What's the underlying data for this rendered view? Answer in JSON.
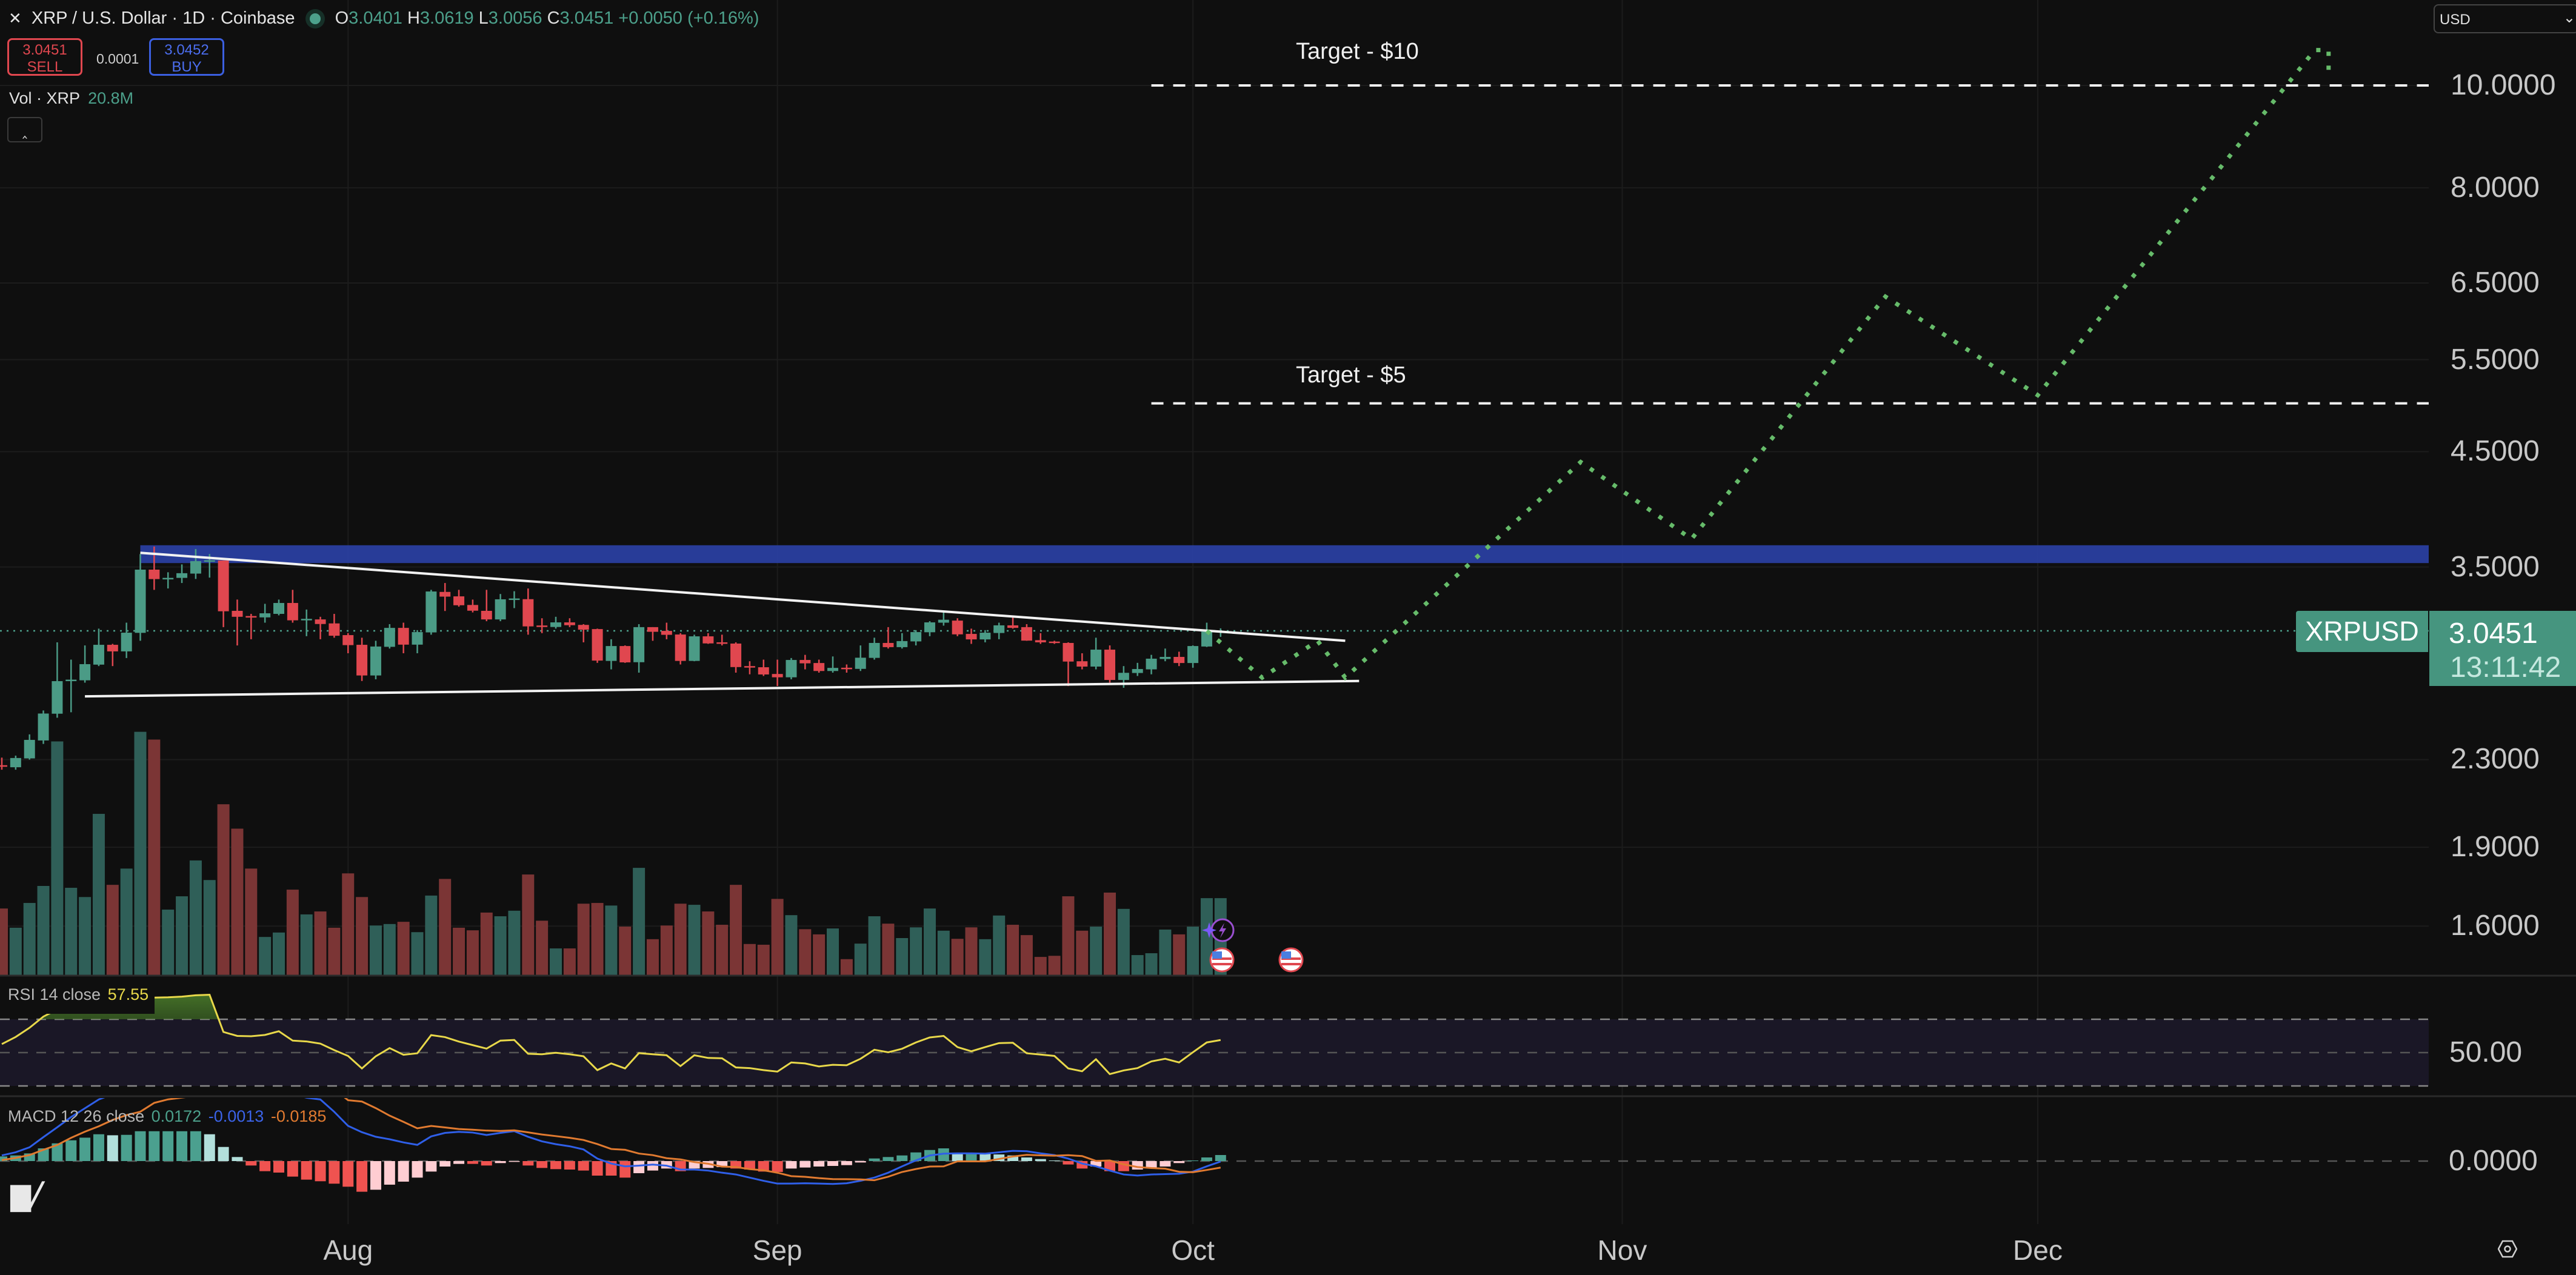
{
  "header": {
    "close_icon": "x-icon",
    "title": "XRP / U.S. Dollar · 1D · Coinbase",
    "status_dot_color": "#4ca08b",
    "ohlc": {
      "o_label": "O",
      "o": "3.0401",
      "h_label": "H",
      "h": "3.0619",
      "l_label": "L",
      "l": "3.0056",
      "c_label": "C",
      "c": "3.0451",
      "change": "+0.0050 (+0.16%)"
    },
    "sell": {
      "price": "3.0451",
      "label": "SELL"
    },
    "spread": "0.0001",
    "buy": {
      "price": "3.0452",
      "label": "BUY"
    },
    "volume": {
      "label": "Vol · XRP",
      "value": "20.8M"
    },
    "collapse_icon": "chevron-up-icon"
  },
  "currency_select": {
    "value": "USD"
  },
  "symbol_label": "XRPUSD",
  "last_price": "3.0451",
  "countdown": "13:11:42",
  "rsi": {
    "label": "RSI 14 close",
    "value": "57.55",
    "axis_label": "50.00",
    "levels": [
      70,
      50,
      30
    ]
  },
  "macd": {
    "label": "MACD 12 26 close",
    "hist": "0.0172",
    "macd": "-0.0013",
    "signal": "-0.0185",
    "axis_label": "0.0000"
  },
  "annotations": {
    "target_10": "Target - $10",
    "target_5": "Target - $5"
  },
  "colors": {
    "up": "#4b9b86",
    "down": "#e0474f",
    "vol_up": "#2f5f58",
    "vol_down": "#7b3535",
    "zone": "#2a3fa0",
    "projection": "#66bb6a",
    "rsi": "#e8d84a",
    "macd_line": "#2f5fe8",
    "signal_line": "#e07a30"
  },
  "chart_data": {
    "type": "candlestick",
    "scale": "log",
    "price_axis": {
      "ticks": [
        "10.0000",
        "8.0000",
        "6.5000",
        "5.5000",
        "4.5000",
        "3.5000",
        "2.3000",
        "1.9000",
        "1.6000"
      ]
    },
    "time_axis": {
      "ticks": [
        "Aug",
        "Sep",
        "Oct",
        "Nov",
        "Dec"
      ]
    },
    "candles_fields": [
      "date",
      "open",
      "high",
      "low",
      "close",
      "volume_M"
    ],
    "candles": [
      [
        "Jul 7",
        2.272,
        2.31,
        2.25,
        2.267,
        18.0
      ],
      [
        "Jul 8",
        2.262,
        2.32,
        2.25,
        2.308,
        12.8
      ],
      [
        "Jul 9",
        2.306,
        2.43,
        2.3,
        2.401,
        19.5
      ],
      [
        "Jul 10",
        2.398,
        2.56,
        2.38,
        2.543,
        24.1
      ],
      [
        "Jul 11",
        2.542,
        2.97,
        2.52,
        2.729,
        63.2
      ],
      [
        "Jul 12",
        2.734,
        2.86,
        2.55,
        2.738,
        23.6
      ],
      [
        "Jul 13",
        2.734,
        2.95,
        2.72,
        2.832,
        21.1
      ],
      [
        "Jul 14",
        2.829,
        3.06,
        2.82,
        2.954,
        43.6
      ],
      [
        "Jul 15",
        2.954,
        2.96,
        2.82,
        2.912,
        24.4
      ],
      [
        "Jul 16",
        2.912,
        3.1,
        2.87,
        3.033,
        28.8
      ],
      [
        "Jul 17",
        3.032,
        3.6,
        2.98,
        3.48,
        65.8
      ],
      [
        "Jul 18",
        3.48,
        3.66,
        3.33,
        3.409,
        63.7
      ],
      [
        "Jul 19",
        3.412,
        3.46,
        3.34,
        3.418,
        17.7
      ],
      [
        "Jul 20",
        3.418,
        3.52,
        3.38,
        3.453,
        21.3
      ],
      [
        "Jul 21",
        3.45,
        3.64,
        3.41,
        3.545,
        31.0
      ],
      [
        "Jul 22",
        3.548,
        3.6,
        3.42,
        3.552,
        25.7
      ],
      [
        "Jul 23",
        3.55,
        3.55,
        3.07,
        3.178,
        46.2
      ],
      [
        "Jul 24",
        3.181,
        3.26,
        2.95,
        3.14,
        39.6
      ],
      [
        "Jul 25",
        3.145,
        3.16,
        2.99,
        3.142,
        28.8
      ],
      [
        "Jul 26",
        3.136,
        3.23,
        3.1,
        3.164,
        10.3
      ],
      [
        "Jul 27",
        3.16,
        3.26,
        3.15,
        3.236,
        11.5
      ],
      [
        "Jul 28",
        3.236,
        3.33,
        3.1,
        3.116,
        23.1
      ],
      [
        "Jul 29",
        3.122,
        3.19,
        3.01,
        3.126,
        16.4
      ],
      [
        "Jul 30",
        3.122,
        3.14,
        2.99,
        3.091,
        17.2
      ],
      [
        "Jul 31",
        3.095,
        3.16,
        3.0,
        3.013,
        12.8
      ],
      [
        "Aug 1",
        3.017,
        3.03,
        2.9,
        2.952,
        27.5
      ],
      [
        "Aug 2",
        2.954,
        3.0,
        2.73,
        2.763,
        21.1
      ],
      [
        "Aug 3",
        2.763,
        2.98,
        2.74,
        2.943,
        13.4
      ],
      [
        "Aug 4",
        2.941,
        3.09,
        2.93,
        3.065,
        13.8
      ],
      [
        "Aug 5",
        3.065,
        3.1,
        2.9,
        2.955,
        14.4
      ],
      [
        "Aug 6",
        2.955,
        3.05,
        2.9,
        3.037,
        11.6
      ],
      [
        "Aug 7",
        3.035,
        3.33,
        3.02,
        3.318,
        21.5
      ],
      [
        "Aug 8",
        3.315,
        3.38,
        3.18,
        3.281,
        26.0
      ],
      [
        "Aug 9",
        3.283,
        3.33,
        3.21,
        3.22,
        12.8
      ],
      [
        "Aug 10",
        3.222,
        3.26,
        3.17,
        3.182,
        12.1
      ],
      [
        "Aug 11",
        3.181,
        3.33,
        3.11,
        3.122,
        16.9
      ],
      [
        "Aug 12",
        3.122,
        3.3,
        3.11,
        3.262,
        15.9
      ],
      [
        "Aug 13",
        3.262,
        3.32,
        3.2,
        3.268,
        17.4
      ],
      [
        "Aug 14",
        3.263,
        3.34,
        3.02,
        3.075,
        27.2
      ],
      [
        "Aug 15",
        3.081,
        3.13,
        3.03,
        3.079,
        14.7
      ],
      [
        "Aug 16",
        3.071,
        3.14,
        3.06,
        3.102,
        7.2
      ],
      [
        "Aug 17",
        3.102,
        3.13,
        3.07,
        3.083,
        7.2
      ],
      [
        "Aug 18",
        3.085,
        3.09,
        2.97,
        3.053,
        19.3
      ],
      [
        "Aug 19",
        3.057,
        3.06,
        2.84,
        2.854,
        19.5
      ],
      [
        "Aug 20",
        2.852,
        2.99,
        2.8,
        2.946,
        18.8
      ],
      [
        "Aug 21",
        2.946,
        2.95,
        2.84,
        2.843,
        13.1
      ],
      [
        "Aug 22",
        2.844,
        3.09,
        2.78,
        3.07,
        29.0
      ],
      [
        "Aug 23",
        3.07,
        3.07,
        2.98,
        3.039,
        9.7
      ],
      [
        "Aug 24",
        3.045,
        3.1,
        2.99,
        3.019,
        13.4
      ],
      [
        "Aug 25",
        3.021,
        3.03,
        2.83,
        2.852,
        19.3
      ],
      [
        "Aug 26",
        2.852,
        3.02,
        2.85,
        3.009,
        19.0
      ],
      [
        "Aug 27",
        3.009,
        3.03,
        2.96,
        2.963,
        17.2
      ],
      [
        "Aug 28",
        2.97,
        3.02,
        2.95,
        2.966,
        13.6
      ],
      [
        "Aug 29",
        2.962,
        2.97,
        2.78,
        2.814,
        24.4
      ],
      [
        "Aug 30",
        2.82,
        2.85,
        2.77,
        2.816,
        8.4
      ],
      [
        "Aug 31",
        2.813,
        2.86,
        2.76,
        2.769,
        8.2
      ],
      [
        "Sep 1",
        2.772,
        2.86,
        2.7,
        2.752,
        20.6
      ],
      [
        "Sep 2",
        2.752,
        2.87,
        2.74,
        2.858,
        16.2
      ],
      [
        "Sep 3",
        2.858,
        2.89,
        2.8,
        2.837,
        12.4
      ],
      [
        "Sep 4",
        2.839,
        2.86,
        2.78,
        2.79,
        11.0
      ],
      [
        "Sep 5",
        2.79,
        2.88,
        2.78,
        2.809,
        12.6
      ],
      [
        "Sep 6",
        2.81,
        2.83,
        2.78,
        2.806,
        4.3
      ],
      [
        "Sep 7",
        2.803,
        2.95,
        2.79,
        2.872,
        8.5
      ],
      [
        "Sep 8",
        2.871,
        3.0,
        2.86,
        2.966,
        15.9
      ],
      [
        "Sep 9",
        2.966,
        3.07,
        2.93,
        2.939,
        13.9
      ],
      [
        "Sep 10",
        2.939,
        3.03,
        2.93,
        2.978,
        10.0
      ],
      [
        "Sep 11",
        2.976,
        3.05,
        2.95,
        3.037,
        12.9
      ],
      [
        "Sep 12",
        3.036,
        3.11,
        3.01,
        3.102,
        18.0
      ],
      [
        "Sep 13",
        3.1,
        3.18,
        3.08,
        3.12,
        12.0
      ],
      [
        "Sep 14",
        3.114,
        3.13,
        3.01,
        3.022,
        9.8
      ],
      [
        "Sep 15",
        3.025,
        3.06,
        2.96,
        2.989,
        12.9
      ],
      [
        "Sep 16",
        2.989,
        3.05,
        2.97,
        3.033,
        9.7
      ],
      [
        "Sep 17",
        3.031,
        3.1,
        2.99,
        3.082,
        16.1
      ],
      [
        "Sep 18",
        3.082,
        3.14,
        3.06,
        3.065,
        13.6
      ],
      [
        "Sep 19",
        3.07,
        3.09,
        2.98,
        2.981,
        10.8
      ],
      [
        "Sep 20",
        2.984,
        3.03,
        2.96,
        2.97,
        4.9
      ],
      [
        "Sep 21",
        2.975,
        2.98,
        2.96,
        2.971,
        5.2
      ],
      [
        "Sep 22",
        2.966,
        2.97,
        2.7,
        2.848,
        21.3
      ],
      [
        "Sep 23",
        2.85,
        2.9,
        2.8,
        2.817,
        12.0
      ],
      [
        "Sep 24",
        2.817,
        3.0,
        2.8,
        2.923,
        13.1
      ],
      [
        "Sep 25",
        2.923,
        2.95,
        2.72,
        2.736,
        22.3
      ],
      [
        "Sep 26",
        2.736,
        2.82,
        2.69,
        2.779,
        17.9
      ],
      [
        "Sep 27",
        2.778,
        2.84,
        2.76,
        2.802,
        5.4
      ],
      [
        "Sep 28",
        2.8,
        2.89,
        2.77,
        2.866,
        5.9
      ],
      [
        "Sep 29",
        2.864,
        2.93,
        2.85,
        2.877,
        12.3
      ],
      [
        "Sep 30",
        2.877,
        2.91,
        2.82,
        2.839,
        11.0
      ],
      [
        "Oct 1",
        2.839,
        2.95,
        2.81,
        2.946,
        13.1
      ],
      [
        "Oct 2",
        2.943,
        3.1,
        2.94,
        3.04,
        20.8
      ],
      [
        "Oct 3",
        3.0401,
        3.0619,
        3.0056,
        3.0451,
        20.8
      ]
    ],
    "rsi_values": [
      55.1,
      59.4,
      64.9,
      71.6,
      75.9,
      77.7,
      78.9,
      80.2,
      79.5,
      81.4,
      83.2,
      83.0,
      83.2,
      83.6,
      84.4,
      84.7,
      62.4,
      60.0,
      59.8,
      60.6,
      62.8,
      57.2,
      56.7,
      55.4,
      51.5,
      48.0,
      40.5,
      47.8,
      52.7,
      48.7,
      49.6,
      60.5,
      59.3,
      56.6,
      54.5,
      52.4,
      57.2,
      57.6,
      49.3,
      49.0,
      49.9,
      49.0,
      47.8,
      39.5,
      43.5,
      40.5,
      49.7,
      49.0,
      48.4,
      41.9,
      48.4,
      46.8,
      46.6,
      41.1,
      40.7,
      39.5,
      38.6,
      44.1,
      43.5,
      41.7,
      42.7,
      42.4,
      46.3,
      51.7,
      50.2,
      52.3,
      56.1,
      59.1,
      60.0,
      53.3,
      50.8,
      53.3,
      55.7,
      55.9,
      49.6,
      48.8,
      48.0,
      40.5,
      38.8,
      46.0,
      37.1,
      39.3,
      40.7,
      44.7,
      46.3,
      44.1,
      50.2,
      56.1,
      57.55
    ],
    "macd_values": [
      0.016,
      0.025,
      0.039,
      0.068,
      0.096,
      0.125,
      0.15,
      0.175,
      0.19,
      0.205,
      0.225,
      0.25,
      0.26,
      0.265,
      0.27,
      0.27,
      0.255,
      0.24,
      0.225,
      0.21,
      0.2,
      0.19,
      0.18,
      0.175,
      0.14,
      0.1,
      0.082,
      0.069,
      0.062,
      0.053,
      0.046,
      0.07,
      0.08,
      0.083,
      0.081,
      0.074,
      0.08,
      0.085,
      0.069,
      0.056,
      0.048,
      0.042,
      0.033,
      0.007,
      -0.007,
      -0.015,
      -0.013,
      -0.01,
      -0.013,
      -0.024,
      -0.024,
      -0.027,
      -0.033,
      -0.038,
      -0.047,
      -0.056,
      -0.064,
      -0.064,
      -0.063,
      -0.064,
      -0.065,
      -0.063,
      -0.056,
      -0.047,
      -0.033,
      -0.015,
      0.002,
      0.016,
      0.021,
      0.022,
      0.022,
      0.021,
      0.025,
      0.029,
      0.028,
      0.022,
      0.017,
      0.007,
      -0.007,
      -0.015,
      -0.027,
      -0.038,
      -0.041,
      -0.038,
      -0.037,
      -0.036,
      -0.03,
      -0.015,
      -0.0013
    ],
    "macd_hist": [
      0.0132,
      0.016,
      0.0218,
      0.0361,
      0.0504,
      0.059,
      0.0665,
      0.0762,
      0.0733,
      0.0745,
      0.0848,
      0.0848,
      0.0848,
      0.0848,
      0.0848,
      0.0762,
      0.0401,
      0.0115,
      -0.0126,
      -0.0287,
      -0.0327,
      -0.0441,
      -0.0527,
      -0.0573,
      -0.0642,
      -0.0728,
      -0.0871,
      -0.0814,
      -0.067,
      -0.0584,
      -0.047,
      -0.0298,
      -0.0155,
      -0.008,
      -0.008,
      -0.0126,
      -0.0057,
      -0.0023,
      -0.0126,
      -0.0195,
      -0.0229,
      -0.0241,
      -0.0269,
      -0.0413,
      -0.0413,
      -0.047,
      -0.0344,
      -0.0269,
      -0.0212,
      -0.0287,
      -0.0212,
      -0.0195,
      -0.0172,
      -0.0212,
      -0.0241,
      -0.0298,
      -0.0309,
      -0.0212,
      -0.0183,
      -0.0155,
      -0.0138,
      -0.0115,
      -0.004,
      0.0074,
      0.0115,
      0.016,
      0.0246,
      0.0315,
      0.0361,
      0.0229,
      0.0229,
      0.0218,
      0.0189,
      0.016,
      0.0103,
      0.0057,
      0.0017,
      -0.0097,
      -0.0212,
      -0.0155,
      -0.0287,
      -0.0287,
      -0.0241,
      -0.0183,
      -0.0155,
      -0.0057,
      0.0017,
      0.0103,
      0.0172
    ],
    "resistance_zone": {
      "from": "Jul 17",
      "low": 3.53,
      "high": 3.67
    },
    "trendlines": [
      {
        "from": [
          "Jul 17",
          3.61
        ],
        "to": [
          "Oct 12",
          2.98
        ]
      },
      {
        "from": [
          "Jul 13",
          2.64
        ],
        "to": [
          "Oct 13",
          2.73
        ]
      }
    ],
    "targets": [
      {
        "price": 10,
        "from": "Sep 28",
        "label_key": "target_10"
      },
      {
        "price": 5,
        "from": "Sep 28",
        "label_key": "target_5"
      }
    ],
    "projection": [
      [
        "Oct 2",
        3.045
      ],
      [
        "Oct 6",
        2.75
      ],
      [
        "Oct 10",
        2.98
      ],
      [
        "Oct 12",
        2.75
      ],
      [
        "Oct 29",
        4.4
      ],
      [
        "Nov 6",
        3.72
      ],
      [
        "Nov 20",
        6.31
      ],
      [
        "Dec 1",
        5.09
      ],
      [
        "Dec 21",
        10.8
      ],
      [
        "Dec 22",
        10.8
      ],
      [
        "Dec 22",
        10.3
      ]
    ]
  }
}
